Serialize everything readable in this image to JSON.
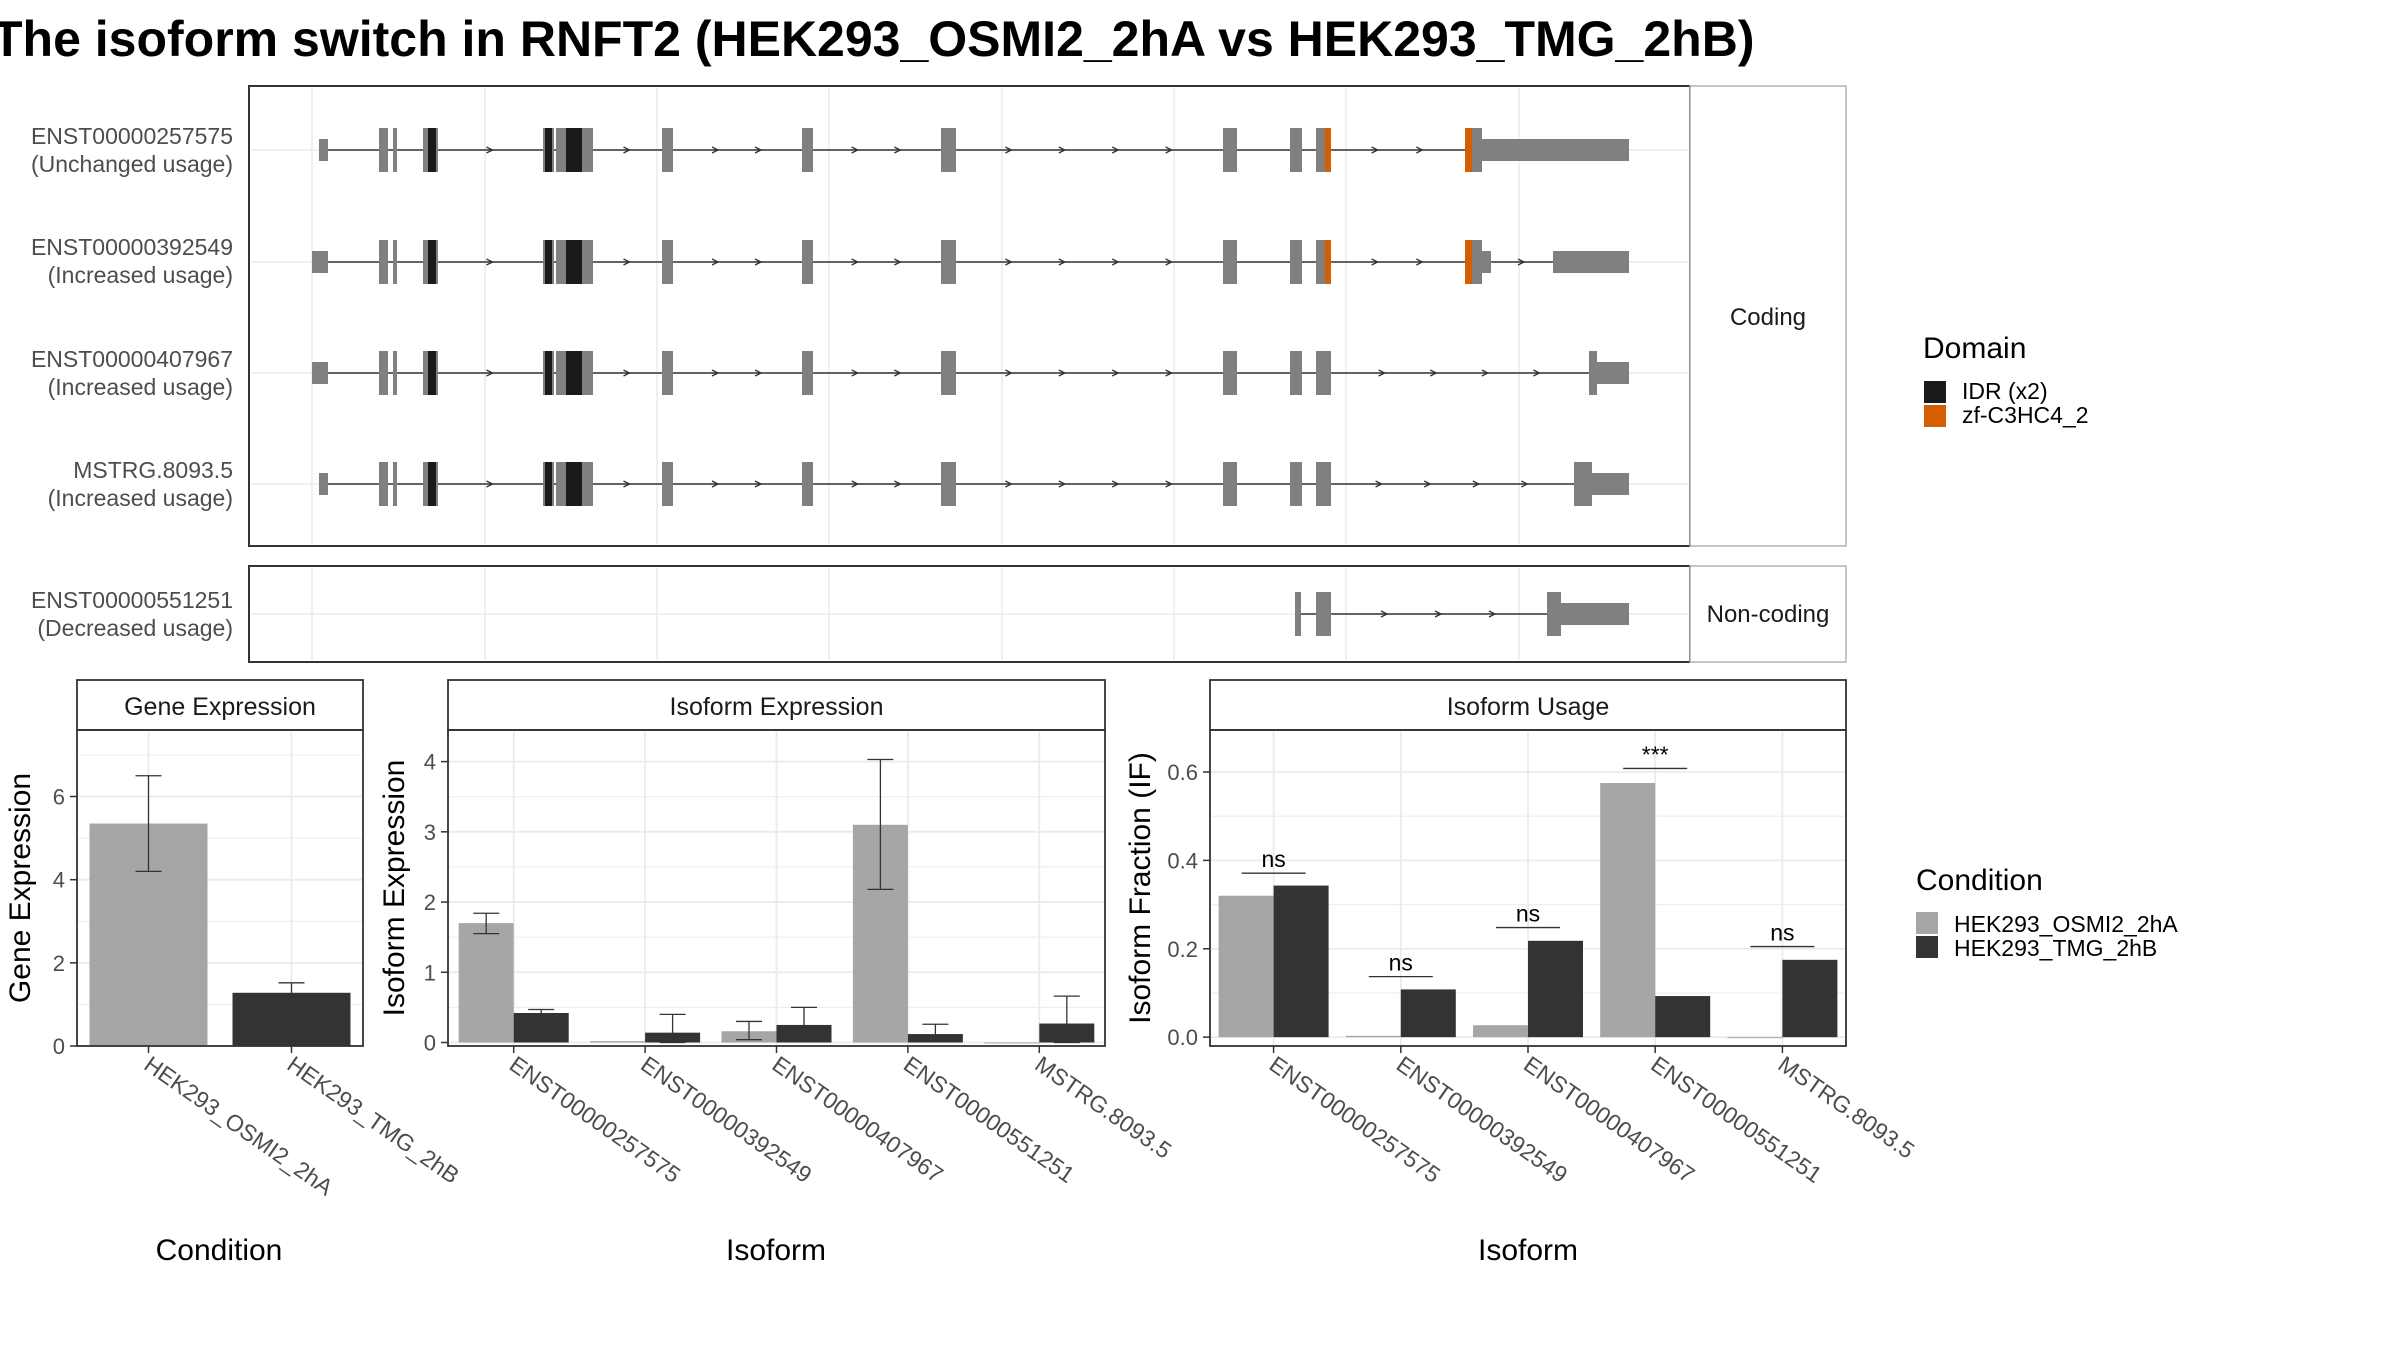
{
  "title": "The isoform switch in RNFT2 (HEK293_OSMI2_2hA vs HEK293_TMG_2hB)",
  "colors": {
    "exon": "#808080",
    "idr": "#1a1a1a",
    "zf": "#d55e00",
    "cond_a": "#a6a6a6",
    "cond_b": "#333333",
    "grid": "#ebebeb",
    "strip_fill": "#ffffff",
    "frame": "#333333"
  },
  "structure": {
    "panels": [
      {
        "strip": "Coding",
        "isoforms": [
          {
            "id": "ENST00000257575",
            "usage": "(Unchanged usage)"
          },
          {
            "id": "ENST00000392549",
            "usage": "(Increased usage)"
          },
          {
            "id": "ENST00000407967",
            "usage": "(Increased usage)"
          },
          {
            "id": "MSTRG.8093.5",
            "usage": "(Increased usage)"
          }
        ]
      },
      {
        "strip": "Non-coding",
        "isoforms": [
          {
            "id": "ENST00000551251",
            "usage": "(Decreased usage)"
          }
        ]
      }
    ],
    "legend": {
      "title": "Domain",
      "items": [
        {
          "label": "IDR (x2)",
          "color": "#1a1a1a"
        },
        {
          "label": "zf-C3HC4_2",
          "color": "#d55e00"
        }
      ]
    }
  },
  "chart_data": [
    {
      "type": "bar",
      "title": "Gene Expression",
      "xlabel": "Condition",
      "ylabel": "Gene Expression",
      "categories": [
        "HEK293_OSMI2_2hA",
        "HEK293_TMG_2hB"
      ],
      "values": [
        5.35,
        1.28
      ],
      "errors": [
        [
          4.2,
          6.5
        ],
        [
          1.05,
          1.52
        ]
      ],
      "yticks": [
        0,
        2,
        4,
        6
      ],
      "ylim": [
        0,
        7.6
      ]
    },
    {
      "type": "bar",
      "title": "Isoform Expression",
      "xlabel": "Isoform",
      "ylabel": "Isoform Expression",
      "categories": [
        "ENST00000257575",
        "ENST00000392549",
        "ENST00000407967",
        "ENST00000551251",
        "MSTRG.8093.5"
      ],
      "series": [
        {
          "name": "HEK293_OSMI2_2hA",
          "values": [
            1.7,
            0.02,
            0.16,
            3.1,
            0.0
          ],
          "errors": [
            [
              1.55,
              1.84
            ],
            null,
            [
              0.04,
              0.3
            ],
            [
              2.18,
              4.03
            ],
            null
          ]
        },
        {
          "name": "HEK293_TMG_2hB",
          "values": [
            0.42,
            0.14,
            0.25,
            0.12,
            0.27
          ],
          "errors": [
            [
              0.37,
              0.47
            ],
            [
              0.0,
              0.4
            ],
            [
              0.01,
              0.5
            ],
            [
              0.01,
              0.26
            ],
            [
              0.0,
              0.66
            ]
          ]
        }
      ],
      "yticks": [
        0,
        1,
        2,
        3,
        4
      ],
      "ylim": [
        -0.05,
        4.45
      ]
    },
    {
      "type": "bar",
      "title": "Isoform Usage",
      "xlabel": "Isoform",
      "ylabel": "Isoform Fraction (IF)",
      "categories": [
        "ENST00000257575",
        "ENST00000392549",
        "ENST00000407967",
        "ENST00000551251",
        "MSTRG.8093.5"
      ],
      "series": [
        {
          "name": "HEK293_OSMI2_2hA",
          "values": [
            0.32,
            0.003,
            0.027,
            0.575,
            0.0
          ]
        },
        {
          "name": "HEK293_TMG_2hB",
          "values": [
            0.343,
            0.108,
            0.218,
            0.093,
            0.175
          ]
        }
      ],
      "significance": [
        "ns",
        "ns",
        "ns",
        "***",
        "ns"
      ],
      "significance_level": [
        0.371,
        0.137,
        0.248,
        0.608,
        0.205
      ],
      "yticks": [
        0.0,
        0.2,
        0.4,
        0.6
      ],
      "ytick_labels": [
        "0.0",
        "0.2",
        "0.4",
        "0.6"
      ],
      "ylim": [
        -0.02,
        0.695
      ]
    }
  ],
  "condition_legend": {
    "title": "Condition",
    "items": [
      {
        "label": "HEK293_OSMI2_2hA",
        "color": "#a6a6a6"
      },
      {
        "label": "HEK293_TMG_2hB",
        "color": "#333333"
      }
    ]
  }
}
